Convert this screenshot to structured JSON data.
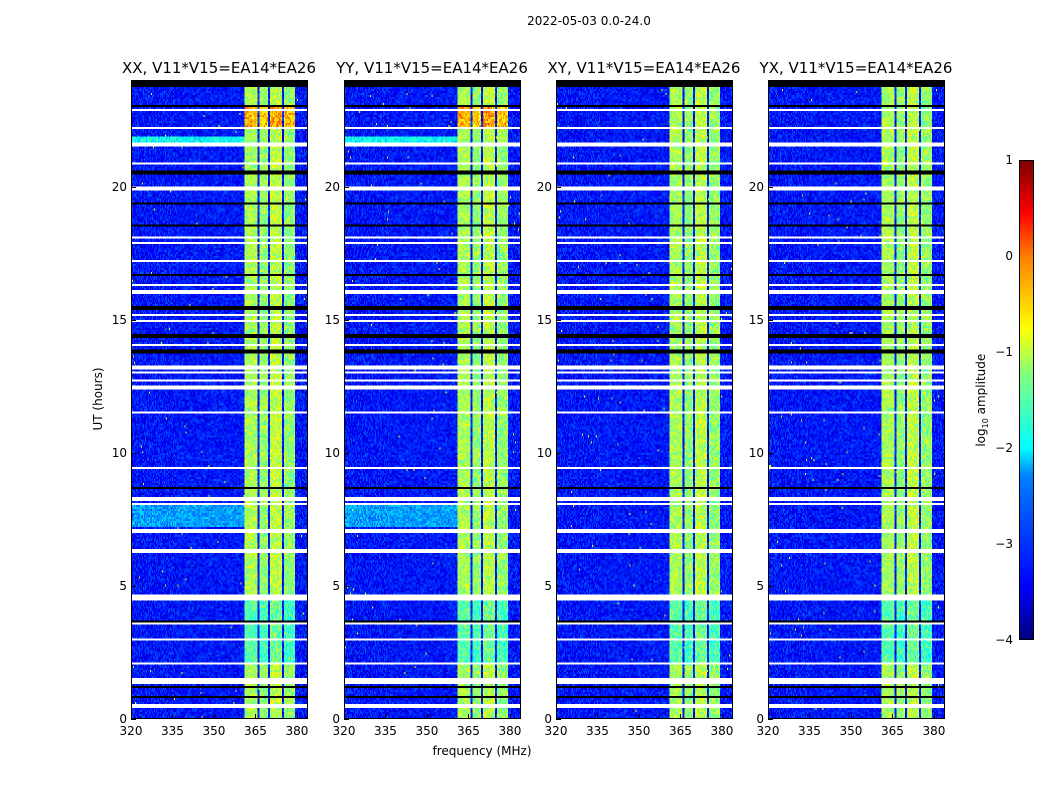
{
  "chart_data": {
    "type": "heatmap",
    "title": "2022-05-03 0.0-24.0",
    "panels": [
      {
        "title": "XX, V11*V15=EA14*EA26",
        "seed": 11
      },
      {
        "title": "YY, V11*V15=EA14*EA26",
        "seed": 23
      },
      {
        "title": "XY, V11*V15=EA14*EA26",
        "seed": 37
      },
      {
        "title": "YX, V11*V15=EA14*EA26",
        "seed": 53
      }
    ],
    "xlabel": "frequency (MHz)",
    "ylabel": "UT (hours)",
    "xlim": [
      320,
      384
    ],
    "ylim": [
      0,
      24
    ],
    "xticks": [
      "320",
      "335",
      "350",
      "365",
      "380"
    ],
    "yticks": [
      "0",
      "5",
      "10",
      "15",
      "20"
    ],
    "colorbar": {
      "label": "log",
      "label_sub": "10",
      "label_rest": " amplitude",
      "range": [
        -4,
        1
      ],
      "ticks": [
        "1",
        "0",
        "−1",
        "−2",
        "−3",
        "−4"
      ]
    },
    "background_log_amp": -3.3,
    "rfi_bands_mhz": [
      [
        361,
        366,
        -1.3
      ],
      [
        366.5,
        370,
        -1.4
      ],
      [
        370.5,
        375,
        -1.2
      ],
      [
        375.5,
        379.5,
        -1.4
      ]
    ],
    "flagged_hours_white": [
      0.45,
      1.35,
      1.45,
      2.05,
      2.95,
      3.55,
      4.5,
      4.6,
      6.25,
      6.35,
      7.05,
      8.05,
      8.25,
      9.4,
      11.5,
      12.4,
      12.5,
      12.7,
      13.0,
      13.2,
      14.05,
      14.95,
      15.2,
      16.05,
      16.3,
      17.2,
      17.9,
      18.1,
      19.95,
      20.9,
      21.55,
      21.6,
      22.25,
      22.9
    ],
    "flagged_hours_black": [
      0.8,
      1.15,
      3.65,
      8.65,
      13.8,
      14.4,
      15.45,
      16.7,
      18.55,
      19.4,
      20.55,
      23.05,
      23.8,
      23.9
    ]
  }
}
